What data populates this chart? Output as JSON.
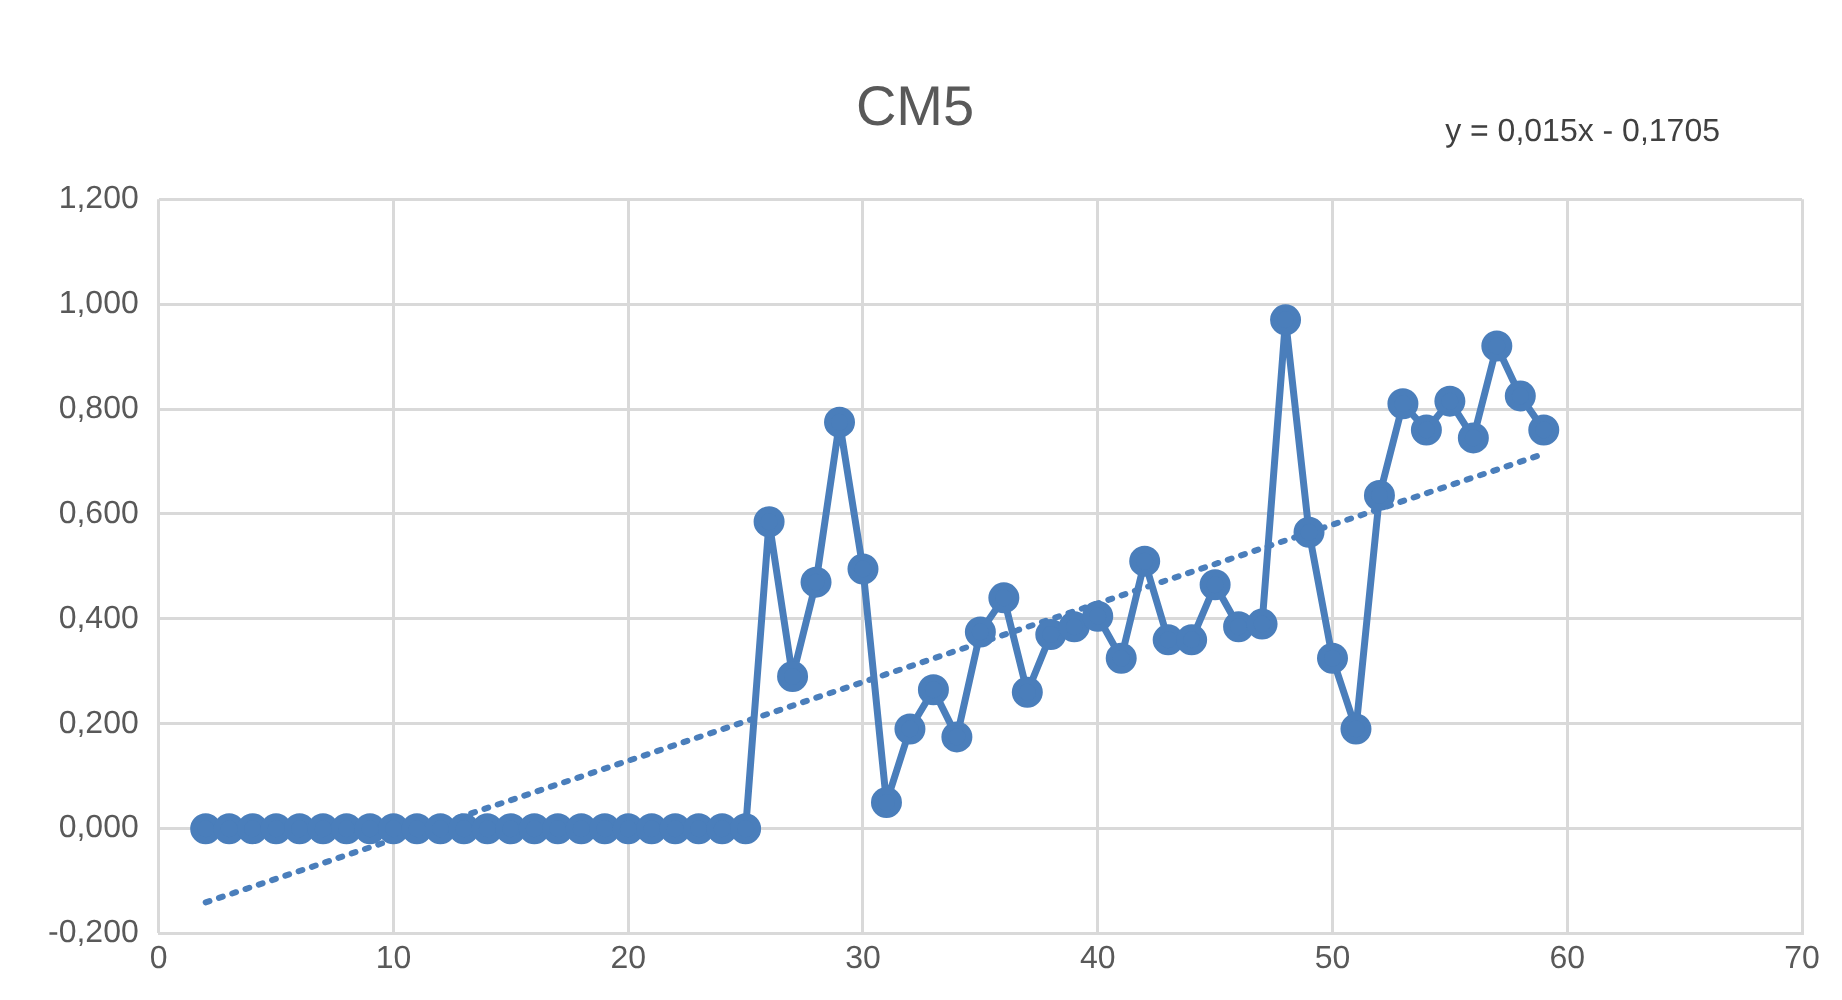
{
  "chart_data": {
    "type": "line",
    "title": "CM5",
    "annotations": [
      "y = 0,015x - 0,1705"
    ],
    "xlim": [
      0,
      70
    ],
    "xticks": [
      0,
      10,
      20,
      30,
      40,
      50,
      60,
      70
    ],
    "ylim": [
      -0.2,
      1.2
    ],
    "yticks": [
      {
        "value": -0.2,
        "label": "-0,200"
      },
      {
        "value": 0,
        "label": "0,000"
      },
      {
        "value": 0.2,
        "label": "0,200"
      },
      {
        "value": 0.4,
        "label": "0,400"
      },
      {
        "value": 0.6,
        "label": "0,600"
      },
      {
        "value": 0.8,
        "label": "0,800"
      },
      {
        "value": 1,
        "label": "1,000"
      },
      {
        "value": 1.2,
        "label": "1,200"
      }
    ],
    "grid": true,
    "legend": false,
    "series": [
      {
        "color": "#4a7ebb",
        "marker": "circle",
        "line_style": "solid",
        "x": [
          2,
          3,
          4,
          5,
          6,
          7,
          8,
          9,
          10,
          11,
          12,
          13,
          14,
          15,
          16,
          17,
          18,
          19,
          20,
          21,
          22,
          23,
          24,
          25,
          26,
          27,
          28,
          29,
          30,
          31,
          32,
          33,
          34,
          35,
          36,
          37,
          38,
          39,
          40,
          41,
          42,
          43,
          44,
          45,
          46,
          47,
          48,
          49,
          50,
          51,
          52,
          53,
          54,
          55,
          56,
          57,
          58,
          59
        ],
        "values": [
          0,
          0,
          0,
          0,
          0,
          0,
          0,
          0,
          0,
          0,
          0,
          0,
          0,
          0,
          0,
          0,
          0,
          0,
          0,
          0,
          0,
          0,
          0,
          0,
          0.585,
          0.29,
          0.47,
          0.775,
          0.495,
          0.05,
          0.19,
          0.265,
          0.175,
          0.375,
          0.44,
          0.26,
          0.37,
          0.385,
          0.405,
          0.325,
          0.51,
          0.36,
          0.36,
          0.465,
          0.385,
          0.39,
          0.97,
          0.565,
          0.325,
          0.19,
          0.635,
          0.81,
          0.76,
          0.815,
          0.745,
          0.92,
          0.825,
          0.76
        ]
      },
      {
        "type": "line",
        "color": "#4a7ebb",
        "marker": "none",
        "line_style": "dotted",
        "x": [
          2,
          59
        ],
        "values": [
          -0.1405,
          0.7145
        ]
      }
    ]
  }
}
